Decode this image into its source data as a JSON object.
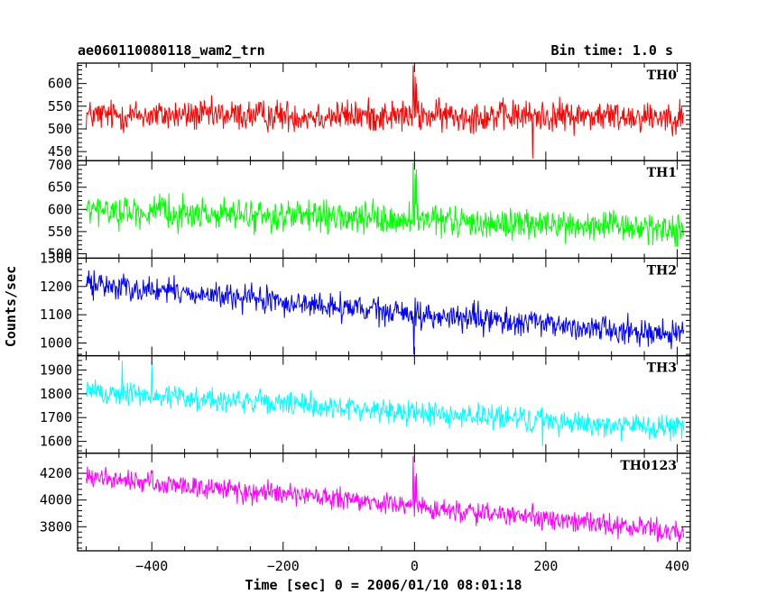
{
  "header": {
    "title": "ae060110080118_wam2_trn",
    "bin_time": "Bin time: 1.0 s"
  },
  "axes": {
    "xlabel": "Time [sec] 0 = 2006/01/10 08:01:18",
    "ylabel": "Counts/sec"
  },
  "chart_data": {
    "type": "line",
    "x_range": [
      -513,
      420
    ],
    "x_ticks": [
      -400,
      -200,
      0,
      200,
      400
    ],
    "x_tick_labels": [
      "−400",
      "−200",
      "0",
      "200",
      "400"
    ],
    "x_time_span": [
      -500,
      410
    ],
    "bin_time_s": 1.0,
    "panels": [
      {
        "label": "TH0",
        "color": "#ff0000",
        "ylim": [
          430,
          645
        ],
        "y_ticks": [
          450,
          500,
          550,
          600
        ],
        "trend": [
          [
            -500,
            530
          ],
          [
            410,
            528
          ]
        ],
        "noise": 30,
        "spikes": [
          [
            -2,
            640
          ],
          [
            1,
            615
          ],
          [
            3,
            600
          ],
          [
            180,
            435
          ]
        ]
      },
      {
        "label": "TH1",
        "color": "#00ff00",
        "ylim": [
          490,
          710
        ],
        "y_ticks": [
          500,
          550,
          600,
          650,
          700
        ],
        "trend": [
          [
            -500,
            598
          ],
          [
            410,
            555
          ]
        ],
        "noise": 30,
        "spikes": [
          [
            -2,
            705
          ],
          [
            1,
            680
          ],
          [
            3,
            690
          ]
        ]
      },
      {
        "label": "TH2",
        "color": "#0000ff",
        "ylim": [
          955,
          1300
        ],
        "y_ticks": [
          1000,
          1100,
          1200,
          1300
        ],
        "trend": [
          [
            -500,
            1210
          ],
          [
            0,
            1100
          ],
          [
            410,
            1030
          ]
        ],
        "noise": 40,
        "spikes": [
          [
            1,
            1160
          ],
          [
            -1,
            960
          ]
        ]
      },
      {
        "label": "TH3",
        "color": "#00ffff",
        "ylim": [
          1550,
          1960
        ],
        "y_ticks": [
          1600,
          1700,
          1800,
          1900
        ],
        "trend": [
          [
            -500,
            1810
          ],
          [
            410,
            1650
          ]
        ],
        "noise": 45,
        "spikes": [
          [
            -445,
            1940
          ],
          [
            -400,
            1930
          ],
          [
            195,
            1580
          ]
        ]
      },
      {
        "label": "TH0123",
        "color": "#ff00ff",
        "ylim": [
          3620,
          4350
        ],
        "y_ticks": [
          3800,
          4000,
          4200
        ],
        "trend": [
          [
            -500,
            4170
          ],
          [
            -150,
            4020
          ],
          [
            410,
            3760
          ]
        ],
        "noise": 70,
        "spikes": [
          [
            -2,
            4330
          ],
          [
            1,
            4180
          ],
          [
            3,
            4200
          ]
        ]
      }
    ]
  }
}
